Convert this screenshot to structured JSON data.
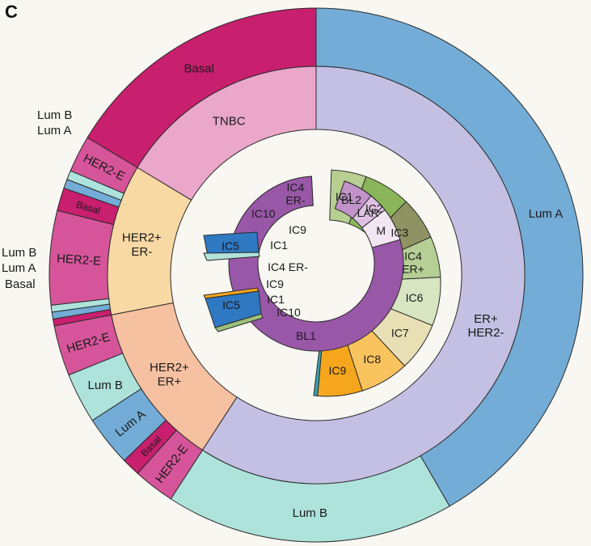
{
  "panel_label": "C",
  "chart_data": {
    "type": "sunburst",
    "title": "",
    "units": "degrees of arc (clockwise from 12 o'clock)",
    "rings": [
      {
        "name": "outer",
        "segments": [
          {
            "label": "Lum A",
            "start": 0,
            "end": 150,
            "color": "#73acd6"
          },
          {
            "label": "Lum B",
            "start": 150,
            "end": 213,
            "color": "#aee3dc"
          },
          {
            "label": "HER2-E",
            "start": 213,
            "end": 222,
            "color": "#d6559a"
          },
          {
            "label": "Basal",
            "start": 222,
            "end": 226,
            "color": "#c81f6e"
          },
          {
            "label": "Lum A",
            "start": 226,
            "end": 237,
            "color": "#73acd6"
          },
          {
            "label": "Lum B",
            "start": 237,
            "end": 248,
            "color": "#aee3dc"
          },
          {
            "label": "HER2-E",
            "start": 248,
            "end": 259,
            "color": "#d6559a"
          },
          {
            "label": "Basal",
            "start": 259,
            "end": 260.5,
            "color": "#c81f6e",
            "callout": true
          },
          {
            "label": "Lum A",
            "start": 260.5,
            "end": 262,
            "color": "#73acd6",
            "callout": true
          },
          {
            "label": "Lum B",
            "start": 262,
            "end": 263.5,
            "color": "#aee3dc",
            "callout": true
          },
          {
            "label": "HER2-E",
            "start": 263.5,
            "end": 284,
            "color": "#d6559a"
          },
          {
            "label": "Basal",
            "start": 284,
            "end": 289,
            "color": "#c81f6e"
          },
          {
            "label": "Lum A",
            "start": 289,
            "end": 291,
            "color": "#73acd6",
            "callout": true
          },
          {
            "label": "Lum B",
            "start": 291,
            "end": 293,
            "color": "#aee3dc",
            "callout": true
          },
          {
            "label": "HER2-E",
            "start": 293,
            "end": 301,
            "color": "#d6559a"
          },
          {
            "label": "Basal",
            "start": 301,
            "end": 360,
            "color": "#c81f6e"
          }
        ]
      },
      {
        "name": "middle",
        "segments": [
          {
            "label": "ER+\nHER2-",
            "start": 0,
            "end": 213,
            "color": "#c3c0e3"
          },
          {
            "label": "HER2+\nER+",
            "start": 213,
            "end": 259,
            "color": "#f6c1a1"
          },
          {
            "label": "HER2+\nER-",
            "start": 259,
            "end": 301,
            "color": "#f8d9a3"
          },
          {
            "label": "TNBC",
            "start": 301,
            "end": 360,
            "color": "#eaa7c9"
          }
        ]
      },
      {
        "name": "inner",
        "segments": [
          {
            "label": "IC1",
            "start": 0,
            "end": 18,
            "color": "#b7cf91"
          },
          {
            "label": "IC2",
            "start": 18,
            "end": 42,
            "color": "#8bb55a"
          },
          {
            "label": "IC3",
            "start": 42,
            "end": 64,
            "color": "#8f9363"
          },
          {
            "label": "IC4\nER+",
            "start": 64,
            "end": 85,
            "color": "#b5cf94"
          },
          {
            "label": "IC6",
            "start": 85,
            "end": 110,
            "color": "#d7e5c1"
          },
          {
            "label": "IC7",
            "start": 110,
            "end": 135,
            "color": "#e8dfb4"
          },
          {
            "label": "IC8",
            "start": 135,
            "end": 160,
            "color": "#f9c35e"
          },
          {
            "label": "IC9",
            "start": 160,
            "end": 183,
            "color": "#f5a61c"
          },
          {
            "label": "",
            "start": 183,
            "end": 185,
            "color": "#35a2b2"
          },
          {
            "label": "IC10",
            "start": 0,
            "end": 27,
            "color": "#3ca3ab"
          },
          {
            "label": "IC9",
            "start": 27,
            "end": 30,
            "color": "#f5a61c"
          },
          {
            "label": "IC4\nER-",
            "start": 30,
            "end": 57,
            "color": "#b2e2d9"
          },
          {
            "label": "BL1",
            "start": 57,
            "end": 79,
            "color": "#9957a8"
          },
          {
            "label": "BL2",
            "start": 79,
            "end": 99,
            "color": "#c193c9"
          },
          {
            "label": "LAR",
            "start": 99,
            "end": 112,
            "color": "#dfc2e3"
          },
          {
            "label": "M",
            "start": 112,
            "end": 134,
            "color": "#f2e6f2"
          }
        ]
      }
    ],
    "extra_labels": [
      "IC9",
      "IC1",
      "IC5",
      "IC4 ER-",
      "IC9",
      "IC1",
      "IC5",
      "IC10"
    ]
  },
  "callouts": {
    "upper": {
      "lumb": "Lum B",
      "luma": "Lum A"
    },
    "lower": {
      "lumb": "Lum B",
      "luma": "Lum A",
      "basal": "Basal"
    }
  },
  "colors": {
    "callout_lumb": "#3aa7a0",
    "callout_luma": "#6aa6c6",
    "callout_basal": "#c81f6e"
  }
}
